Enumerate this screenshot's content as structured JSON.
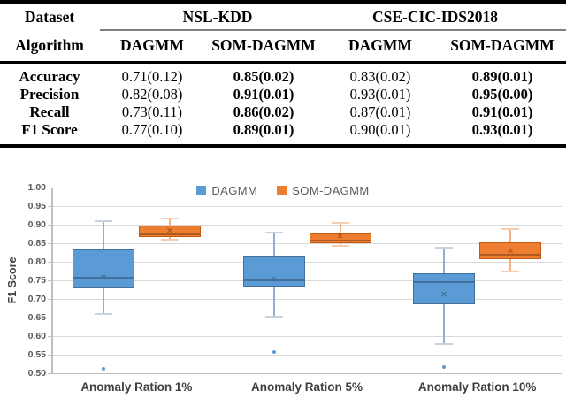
{
  "table": {
    "col_headers_row1": {
      "dataset": "Dataset",
      "nsl_kdd": "NSL-KDD",
      "cse_cic": "CSE-CIC-IDS2018"
    },
    "col_headers_row2": {
      "algorithm": "Algorithm",
      "cols": [
        "DAGMM",
        "SOM-DAGMM",
        "DAGMM",
        "SOM-DAGMM"
      ]
    },
    "rows": [
      {
        "metric": "Accuracy",
        "values": [
          "0.71(0.12)",
          "0.85(0.02)",
          "0.83(0.02)",
          "0.89(0.01)"
        ],
        "bold": [
          false,
          true,
          false,
          true
        ]
      },
      {
        "metric": "Precision",
        "values": [
          "0.82(0.08)",
          "0.91(0.01)",
          "0.93(0.01)",
          "0.95(0.00)"
        ],
        "bold": [
          false,
          true,
          false,
          true
        ]
      },
      {
        "metric": "Recall",
        "values": [
          "0.73(0.11)",
          "0.86(0.02)",
          "0.87(0.01)",
          "0.91(0.01)"
        ],
        "bold": [
          false,
          true,
          false,
          true
        ]
      },
      {
        "metric": "F1 Score",
        "values": [
          "0.77(0.10)",
          "0.89(0.01)",
          "0.90(0.01)",
          "0.93(0.01)"
        ],
        "bold": [
          false,
          true,
          false,
          true
        ]
      }
    ]
  },
  "chart_data": {
    "type": "boxplot",
    "title": "",
    "ylabel": "F1 Score",
    "ylim": [
      0.5,
      1.0
    ],
    "ytick_step": 0.05,
    "grid": true,
    "legend_position": "top-center",
    "categories": [
      "Anomaly Ration 1%",
      "Anomaly Ration 5%",
      "Anomaly Ration 10%"
    ],
    "series": [
      {
        "name": "DAGMM",
        "fill": "#5B9BD5",
        "border": "#41719C",
        "median_color": "#41719C",
        "whisker": "#8FAFD6",
        "cap": "#C9D2DE",
        "boxes": [
          {
            "min": 0.66,
            "q1": 0.729,
            "median": 0.757,
            "mean": 0.757,
            "q3": 0.833,
            "max": 0.91,
            "outliers": [
              0.513
            ]
          },
          {
            "min": 0.653,
            "q1": 0.734,
            "median": 0.75,
            "mean": 0.752,
            "q3": 0.815,
            "max": 0.878,
            "outliers": [
              0.557
            ]
          },
          {
            "min": 0.578,
            "q1": 0.685,
            "median": 0.745,
            "mean": 0.712,
            "q3": 0.768,
            "max": 0.837,
            "outliers": [
              0.517
            ]
          }
        ]
      },
      {
        "name": "SOM-DAGMM",
        "fill": "#ED7D31",
        "border": "#C55A11",
        "median_color": "#AE5A21",
        "whisker": "#F2B183",
        "cap": "#F6CDAF",
        "boxes": [
          {
            "min": 0.859,
            "q1": 0.866,
            "median": 0.875,
            "mean": 0.884,
            "q3": 0.898,
            "max": 0.917,
            "outliers": []
          },
          {
            "min": 0.843,
            "q1": 0.849,
            "median": 0.857,
            "mean": 0.868,
            "q3": 0.877,
            "max": 0.905,
            "outliers": []
          },
          {
            "min": 0.775,
            "q1": 0.806,
            "median": 0.818,
            "mean": 0.829,
            "q3": 0.852,
            "max": 0.888,
            "outliers": []
          }
        ]
      }
    ]
  },
  "colors": {
    "gridline": "#D9D9D9",
    "axis": "#BFBFBF",
    "tick_text": "#595959",
    "xlabel_text": "#3F3F3F",
    "legend_text": "#595959",
    "table_rule_black": "#000000",
    "table_rule_gray": "#7F7F7F"
  }
}
